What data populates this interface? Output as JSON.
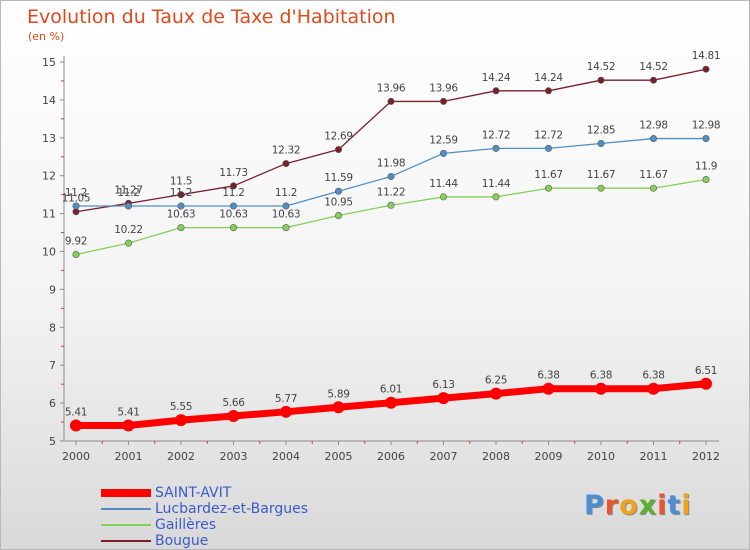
{
  "chart_data": {
    "type": "line",
    "title": "Evolution du Taux de Taxe d'Habitation",
    "subtitle": "(en %)",
    "categories": [
      "2000",
      "2001",
      "2002",
      "2003",
      "2004",
      "2005",
      "2006",
      "2007",
      "2008",
      "2009",
      "2010",
      "2011",
      "2012"
    ],
    "ylim": [
      5,
      15
    ],
    "yticks": [
      5,
      6,
      7,
      8,
      9,
      10,
      11,
      12,
      13,
      14,
      15
    ],
    "grid": false,
    "legend_position": "bottom-left",
    "series": [
      {
        "name": "SAINT-AVIT",
        "color": "#ff0000",
        "values": [
          5.41,
          5.41,
          5.55,
          5.66,
          5.77,
          5.89,
          6.01,
          6.13,
          6.25,
          6.38,
          6.38,
          6.38,
          6.51
        ]
      },
      {
        "name": "Lucbardez-et-Bargues",
        "color": "#4f8fc6",
        "values": [
          11.2,
          11.2,
          11.2,
          11.2,
          11.2,
          11.59,
          11.98,
          12.59,
          12.72,
          12.72,
          12.85,
          12.98,
          12.98
        ]
      },
      {
        "name": "Gaillères",
        "color": "#86d058",
        "values": [
          9.92,
          10.22,
          10.63,
          10.63,
          10.63,
          10.95,
          11.22,
          11.44,
          11.44,
          11.67,
          11.67,
          11.67,
          11.9
        ]
      },
      {
        "name": "Bougue",
        "color": "#7a1e28",
        "values": [
          11.05,
          11.27,
          11.5,
          11.73,
          12.32,
          12.69,
          13.96,
          13.96,
          14.24,
          14.24,
          14.52,
          14.52,
          14.81
        ]
      }
    ]
  },
  "logo": {
    "letters": [
      "P",
      "r",
      "o",
      "x",
      "i",
      "t",
      "i"
    ],
    "colors": [
      "#4a8fd6",
      "#e8562a",
      "#f0a21c",
      "#5bb031",
      "#e8562a",
      "#4a8fd6",
      "#f0a21c"
    ]
  }
}
